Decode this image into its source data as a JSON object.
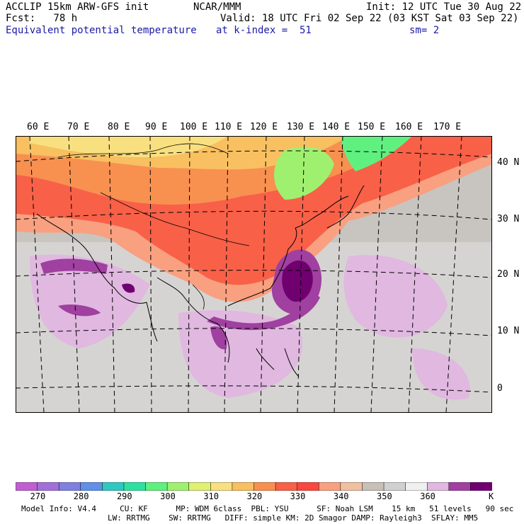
{
  "header": {
    "model": "ACCLIP 15km ARW-GFS init",
    "center": "NCAR/MMM",
    "init": "Init: 12 UTC Tue 30 Aug 22",
    "fcst": "Fcst:   78 h",
    "valid": "Valid: 18 UTC Fri 02 Sep 22 (03 KST Sat 03 Sep 22)",
    "field": "Equivalent potential temperature",
    "level": "at k-index =  51",
    "smooth": "sm= 2"
  },
  "lon_labels": [
    "60 E",
    "70 E",
    "80 E",
    "90 E",
    "100 E",
    "110 E",
    "120 E",
    "130 E",
    "140 E",
    "150 E",
    "160 E",
    "170 E"
  ],
  "lat_labels": [
    "40 N",
    "30 N",
    "20 N",
    "10 N",
    "0"
  ],
  "colorbar": {
    "colors": [
      "#c060d0",
      "#a070d8",
      "#8080e0",
      "#6090e8",
      "#30c8c0",
      "#30e0a0",
      "#60f080",
      "#a0f070",
      "#e0f070",
      "#f8e080",
      "#f8c060",
      "#f89050",
      "#f86048",
      "#f84840",
      "#f8a080",
      "#f0c0a0",
      "#c8c0b8",
      "#d0d0d0",
      "#f0f0f0",
      "#e0b8e0",
      "#a040a0",
      "#700070"
    ],
    "labels": [
      "270",
      "280",
      "290",
      "300",
      "310",
      "320",
      "330",
      "340",
      "350",
      "360"
    ],
    "unit": "K"
  },
  "footer": {
    "line1": "Model Info: V4.4     CU: KF      MP: WDM 6class  PBL: YSU      SF: Noah LSM    15 km   51 levels   90 sec",
    "line2": "LW: RRTMG    SW: RRTMG   DIFF: simple KM: 2D Smagor DAMP: Rayleigh3  SFLAY: MM5"
  }
}
